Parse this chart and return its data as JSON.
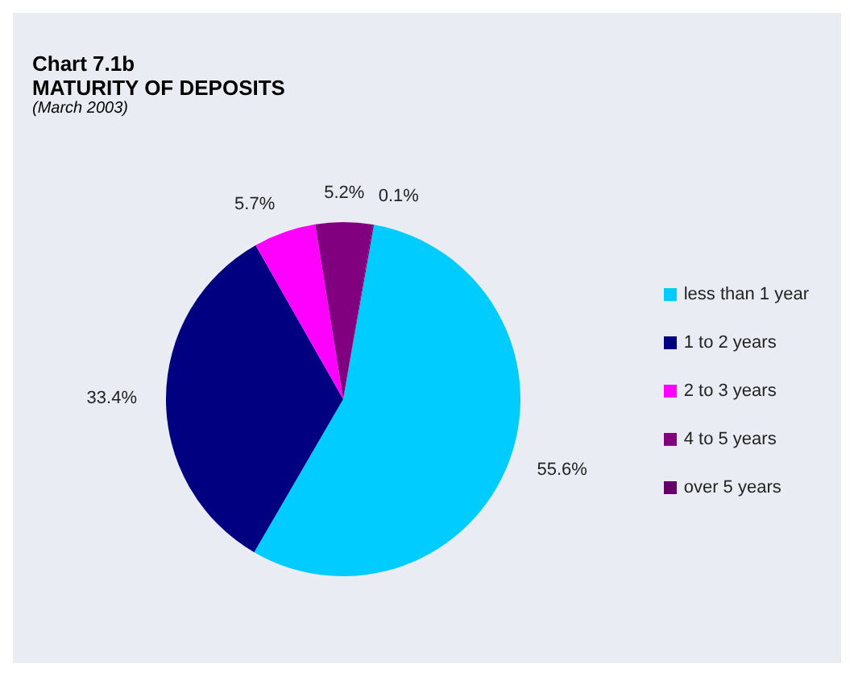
{
  "chart_data": {
    "type": "pie",
    "title": "Chart 7.1b",
    "subtitle": "MATURITY OF DEPOSITS",
    "annotations": [
      "(March 2003)"
    ],
    "categories": [
      "less than 1 year",
      "1 to 2 years",
      "2 to 3 years",
      "4 to 5 years",
      "over 5 years"
    ],
    "values": [
      55.6,
      33.4,
      5.7,
      5.2,
      0.1
    ],
    "colors": [
      "#00ccff",
      "#000080",
      "#ff00ff",
      "#800080",
      "#660066"
    ],
    "value_labels": [
      "55.6%",
      "33.4%",
      "5.7%",
      "5.2%",
      "0.1%"
    ],
    "legend": "right"
  }
}
